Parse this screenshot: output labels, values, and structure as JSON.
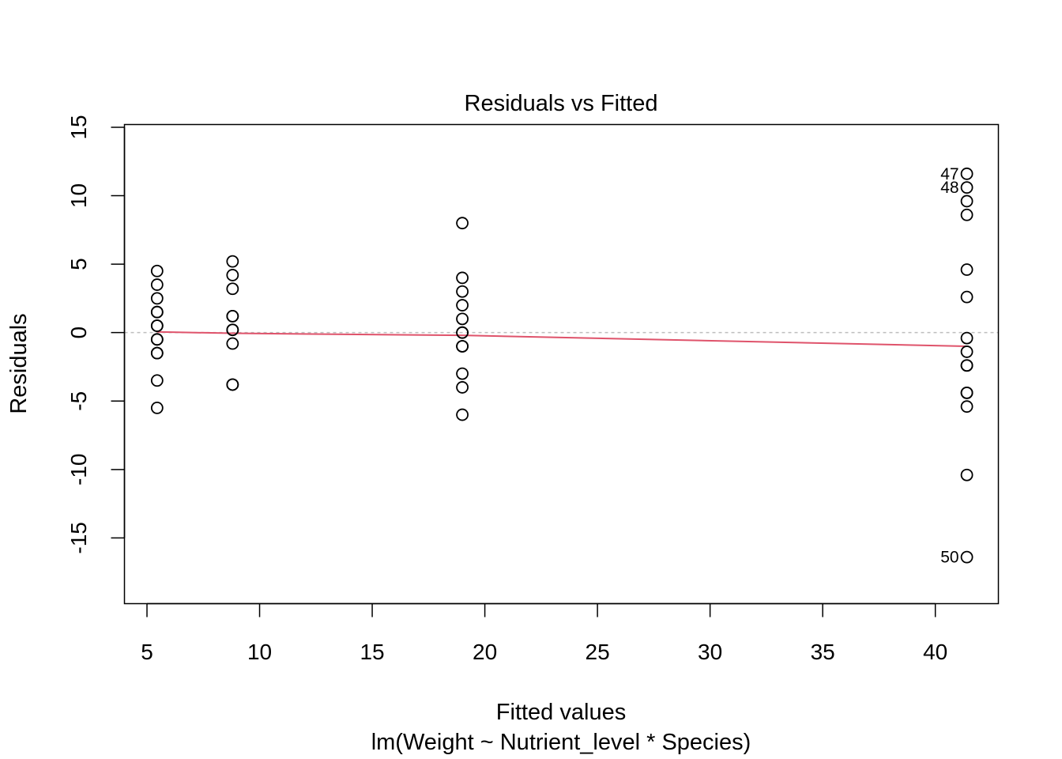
{
  "chart_data": {
    "type": "scatter",
    "title": "Residuals vs Fitted",
    "xlabel": "Fitted values",
    "subtitle": "lm(Weight ~ Nutrient_level * Species)",
    "ylabel": "Residuals",
    "xlim": [
      4,
      42.8
    ],
    "ylim": [
      -19.8,
      15.2
    ],
    "x_ticks": [
      5,
      10,
      15,
      20,
      25,
      30,
      35,
      40
    ],
    "y_ticks": [
      15,
      10,
      5,
      0,
      -5,
      -10,
      -15
    ],
    "grid": false,
    "zero_line": {
      "y": 0,
      "color": "#bebebe",
      "dashed": true
    },
    "point_style": {
      "shape": "open-circle",
      "color": "#000000"
    },
    "points": [
      {
        "x": 5.45,
        "y": 4.5
      },
      {
        "x": 5.45,
        "y": 3.5
      },
      {
        "x": 5.45,
        "y": 2.5
      },
      {
        "x": 5.45,
        "y": 1.5
      },
      {
        "x": 5.45,
        "y": 1.5
      },
      {
        "x": 5.45,
        "y": 0.5
      },
      {
        "x": 5.45,
        "y": 0.5
      },
      {
        "x": 5.45,
        "y": -0.5
      },
      {
        "x": 5.45,
        "y": -0.5
      },
      {
        "x": 5.45,
        "y": -1.5
      },
      {
        "x": 5.45,
        "y": -1.5
      },
      {
        "x": 5.45,
        "y": -3.5
      },
      {
        "x": 5.45,
        "y": -5.5
      },
      {
        "x": 8.8,
        "y": 5.2
      },
      {
        "x": 8.8,
        "y": 4.2
      },
      {
        "x": 8.8,
        "y": 3.2
      },
      {
        "x": 8.8,
        "y": 1.2
      },
      {
        "x": 8.8,
        "y": 1.2
      },
      {
        "x": 8.8,
        "y": 0.2
      },
      {
        "x": 8.8,
        "y": 0.2
      },
      {
        "x": 8.8,
        "y": -0.8
      },
      {
        "x": 8.8,
        "y": -3.8
      },
      {
        "x": 8.8,
        "y": -3.8
      },
      {
        "x": 19.0,
        "y": 8.0
      },
      {
        "x": 19.0,
        "y": 4.0
      },
      {
        "x": 19.0,
        "y": 3.0
      },
      {
        "x": 19.0,
        "y": 2.0
      },
      {
        "x": 19.0,
        "y": 1.0
      },
      {
        "x": 19.0,
        "y": 0.0
      },
      {
        "x": 19.0,
        "y": 0.0
      },
      {
        "x": 19.0,
        "y": -1.0
      },
      {
        "x": 19.0,
        "y": -1.0
      },
      {
        "x": 19.0,
        "y": -3.0
      },
      {
        "x": 19.0,
        "y": -4.0
      },
      {
        "x": 19.0,
        "y": -6.0
      },
      {
        "x": 41.4,
        "y": 11.6,
        "label": "47"
      },
      {
        "x": 41.4,
        "y": 10.6,
        "label": "48"
      },
      {
        "x": 41.4,
        "y": 9.6
      },
      {
        "x": 41.4,
        "y": 8.6
      },
      {
        "x": 41.4,
        "y": 4.6
      },
      {
        "x": 41.4,
        "y": 2.6
      },
      {
        "x": 41.4,
        "y": -0.4
      },
      {
        "x": 41.4,
        "y": -1.4
      },
      {
        "x": 41.4,
        "y": -2.4
      },
      {
        "x": 41.4,
        "y": -2.4
      },
      {
        "x": 41.4,
        "y": -4.4
      },
      {
        "x": 41.4,
        "y": -4.4
      },
      {
        "x": 41.4,
        "y": -5.4
      },
      {
        "x": 41.4,
        "y": -10.4
      },
      {
        "x": 41.4,
        "y": -16.4,
        "label": "50"
      }
    ],
    "smooth_line": {
      "color": "#df536b",
      "x": [
        5.45,
        8.8,
        19.0,
        41.4
      ],
      "y": [
        0.05,
        -0.05,
        -0.2,
        -1.0
      ]
    }
  }
}
